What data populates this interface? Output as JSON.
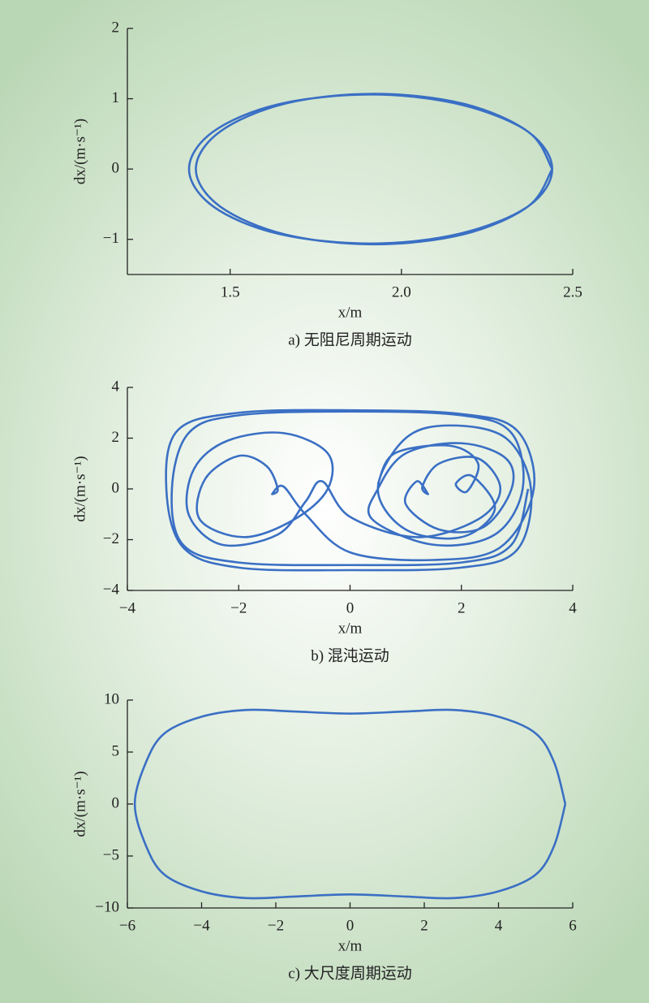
{
  "chart_data": [
    {
      "type": "line",
      "ylabel": "dx/(m·s⁻¹)",
      "xlabel": "x/m",
      "caption": "a) 无阻尼周期运动",
      "color": "#3a6fc4",
      "xlim": [
        1.2,
        2.5
      ],
      "ylim": [
        -1.5,
        2
      ],
      "xticks": [
        1.5,
        {
          "value": 2,
          "label": "2.0"
        },
        2.5
      ],
      "yticks": [
        {
          "value": -1,
          "label": "−1"
        },
        0,
        1,
        2
      ],
      "x": [
        2.44,
        2.37,
        2.18,
        1.92,
        1.66,
        1.47,
        1.4,
        1.47,
        1.66,
        1.92,
        2.18,
        2.37,
        2.44,
        2.37,
        2.17,
        1.91,
        1.64,
        1.45,
        1.38,
        1.45,
        1.64,
        1.91,
        2.17,
        2.37,
        2.44
      ],
      "y": [
        0,
        -0.53,
        -0.93,
        -1.07,
        -0.93,
        -0.53,
        0,
        0.53,
        0.93,
        1.07,
        0.93,
        0.53,
        0,
        -0.53,
        -0.92,
        -1.06,
        -0.92,
        -0.53,
        0,
        0.53,
        0.92,
        1.06,
        0.92,
        0.53,
        0
      ]
    },
    {
      "type": "line",
      "ylabel": "dx/(m·s⁻¹)",
      "xlabel": "x/m",
      "caption": "b) 混沌运动",
      "color": "#3a6fc4",
      "xlim": [
        -4,
        4
      ],
      "ylim": [
        -4,
        4
      ],
      "xticks": [
        {
          "value": -4,
          "label": "−4"
        },
        {
          "value": -2,
          "label": "−2"
        },
        0,
        2,
        4
      ],
      "yticks": [
        {
          "value": -4,
          "label": "−4"
        },
        {
          "value": -2,
          "label": "−2"
        },
        0,
        2,
        4
      ],
      "x": [
        3.2,
        2.9,
        2,
        0,
        -2,
        -3,
        -3.2,
        -2.9,
        -2,
        0,
        2,
        2.9,
        3.1,
        2.6,
        1.5,
        0.4,
        0.5,
        1,
        2,
        2.8,
        2.9,
        2.4,
        1.6,
        1,
        1.2,
        1.4,
        1.3,
        1.6,
        2.3,
        2.7,
        2.3,
        1.2,
        0,
        -0.5,
        -0.8,
        -1.3,
        -2.3,
        -2.9,
        -2.8,
        -2.2,
        -1.2,
        -0.4,
        -0.4,
        -1,
        -1.9,
        -2.7,
        -2.6,
        -2,
        -1.5,
        -1.3,
        -1.4,
        -1.2,
        -0.8,
        0,
        1.5,
        2.7,
        3.3,
        3,
        2,
        0,
        -2,
        -3.1,
        -3.3,
        -3,
        -2,
        0,
        2,
        3,
        3.25,
        2.8,
        1.8,
        1,
        0.5,
        1,
        2,
        2.6,
        2.2,
        1.9,
        2.1,
        2.3,
        1.8,
        0.8,
        0.5
      ],
      "y": [
        0,
        -2.2,
        -2.9,
        -3,
        -2.9,
        -2.2,
        0,
        2.2,
        2.9,
        3.05,
        2.9,
        2.2,
        0,
        -1.8,
        -2.2,
        -1.2,
        0,
        1.4,
        1.8,
        1.2,
        0,
        -1.5,
        -1.6,
        -0.6,
        0.3,
        -0.2,
        0.1,
        1,
        1.2,
        0,
        -1.2,
        -1.9,
        -1.1,
        0.3,
        -0.5,
        -1.8,
        -2.2,
        -1,
        0.8,
        1.9,
        2.2,
        1.4,
        0,
        -1.2,
        -1.9,
        -1.2,
        0.4,
        1.3,
        0.9,
        0,
        -0.2,
        0.1,
        -1,
        -2.5,
        -2.8,
        -2.3,
        0,
        2.3,
        2.95,
        3.1,
        3,
        2.3,
        0,
        -2.3,
        -3.1,
        -3.2,
        -3.1,
        -2.4,
        0,
        2,
        2.5,
        2,
        0,
        -1.6,
        -1.9,
        -0.8,
        0.5,
        0.2,
        -0.1,
        1,
        1.7,
        1.4,
        0.2
      ]
    },
    {
      "type": "line",
      "ylabel": "dx/(m·s⁻¹)",
      "xlabel": "x/m",
      "caption": "c) 大尺度周期运动",
      "color": "#3a6fc4",
      "xlim": [
        -6,
        6
      ],
      "ylim": [
        -10,
        10
      ],
      "xticks": [
        {
          "value": -6,
          "label": "−6"
        },
        {
          "value": -4,
          "label": "−4"
        },
        {
          "value": -2,
          "label": "−2"
        },
        0,
        2,
        4,
        6
      ],
      "yticks": [
        {
          "value": -10,
          "label": "−10"
        },
        {
          "value": -5,
          "label": "−5"
        },
        0,
        5,
        10
      ],
      "x": [
        5.8,
        5.5,
        5,
        4,
        2.8,
        1.5,
        0,
        -1.5,
        -2.8,
        -4,
        -5,
        -5.5,
        -5.8,
        -5.5,
        -5,
        -4,
        -2.8,
        -1.5,
        0,
        1.5,
        2.8,
        4,
        5,
        5.5,
        5.8
      ],
      "y": [
        0,
        4,
        6.8,
        8.4,
        9.05,
        8.9,
        8.7,
        8.9,
        9.05,
        8.4,
        6.8,
        4,
        0,
        -4,
        -6.8,
        -8.4,
        -9.05,
        -8.9,
        -8.7,
        -8.9,
        -9.05,
        -8.4,
        -6.8,
        -4,
        0
      ]
    }
  ]
}
